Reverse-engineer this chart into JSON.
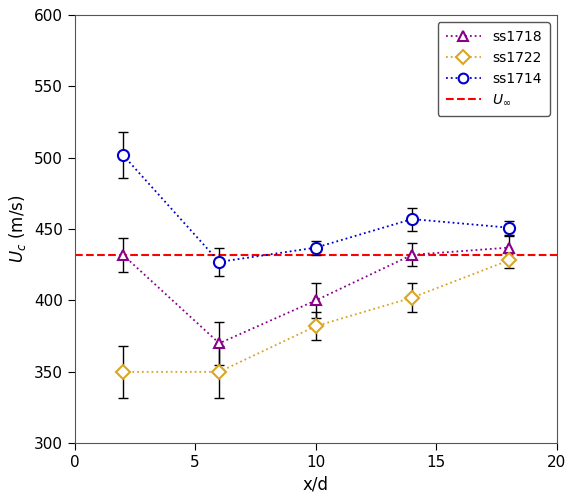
{
  "ss1718": {
    "x": [
      2,
      6,
      10,
      14,
      18
    ],
    "y": [
      432,
      370,
      400,
      432,
      437
    ],
    "yerr": [
      12,
      15,
      12,
      8,
      8
    ],
    "color": "#8B008B",
    "marker": "^",
    "label": "ss1718",
    "markersize": 7
  },
  "ss1722": {
    "x": [
      2,
      6,
      10,
      14,
      18
    ],
    "y": [
      350,
      350,
      382,
      402,
      428
    ],
    "yerr": [
      18,
      18,
      10,
      10,
      5
    ],
    "color": "#DAA520",
    "marker": "D",
    "label": "ss1722",
    "markersize": 7
  },
  "ss1714": {
    "x": [
      2,
      6,
      10,
      14,
      18
    ],
    "y": [
      502,
      427,
      437,
      457,
      451
    ],
    "yerr": [
      16,
      10,
      5,
      8,
      5
    ],
    "color": "#0000CD",
    "marker": "o",
    "label": "ss1714",
    "markersize": 8
  },
  "U_inf": {
    "y": 432,
    "color": "#FF0000",
    "label": "U_inf"
  },
  "xlim": [
    0,
    20
  ],
  "ylim": [
    300,
    600
  ],
  "xlabel": "x/d",
  "ylabel": "U_c  (m/s)",
  "xticks": [
    0,
    5,
    10,
    15,
    20
  ],
  "yticks": [
    300,
    350,
    400,
    450,
    500,
    550,
    600
  ],
  "figsize": [
    5.74,
    4.98
  ],
  "dpi": 100
}
